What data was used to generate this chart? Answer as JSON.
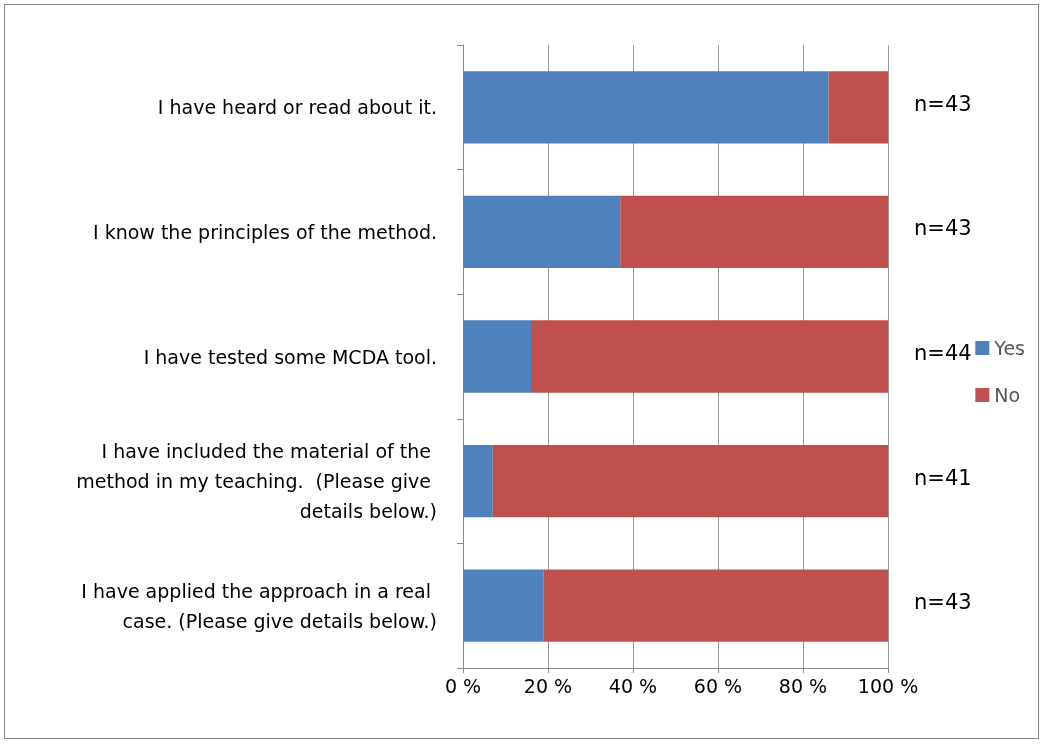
{
  "chart_data": {
    "type": "bar",
    "orientation": "horizontal",
    "stacked": true,
    "categories": [
      "I have heard or read about it.",
      "I know the principles of the method.",
      "I have tested some MCDA tool.",
      "I have included the material of the method in my teaching.  (Please give details below.)",
      "I have applied the approach in a real case. (Please give details below.)"
    ],
    "series": [
      {
        "name": "Yes",
        "color": "#4f81bd",
        "values": [
          86,
          37,
          16,
          7,
          19
        ]
      },
      {
        "name": "No",
        "color": "#c0504d",
        "values": [
          14,
          63,
          84,
          93,
          81
        ]
      }
    ],
    "xlim": [
      0,
      100
    ],
    "xticks": [
      {
        "value": 0,
        "label": "0 %"
      },
      {
        "value": 20,
        "label": "20 %"
      },
      {
        "value": 40,
        "label": "40 %"
      },
      {
        "value": 60,
        "label": "60 %"
      },
      {
        "value": 80,
        "label": "80 %"
      },
      {
        "value": 100,
        "label": "100 %"
      }
    ],
    "grid": "x",
    "legend": "right",
    "annotations": [
      "n=43",
      "n=43",
      "n=44",
      "n=41",
      "n=43"
    ]
  }
}
